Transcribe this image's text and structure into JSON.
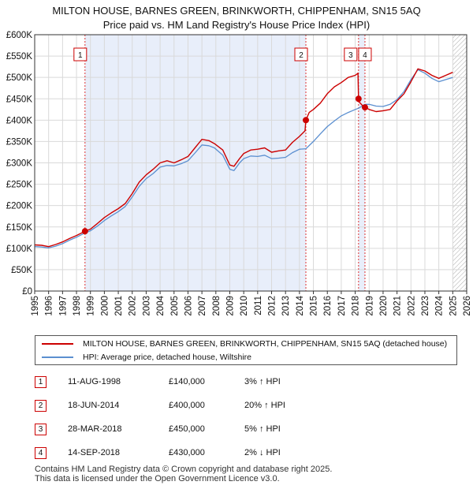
{
  "title_line1": "MILTON HOUSE, BARNES GREEN, BRINKWORTH, CHIPPENHAM, SN15 5AQ",
  "title_line2": "Price paid vs. HM Land Registry's House Price Index (HPI)",
  "chart_data": {
    "type": "line",
    "title": "MILTON HOUSE, BARNES GREEN, BRINKWORTH, CHIPPENHAM, SN15 5AQ — Price paid vs. HM Land Registry's House Price Index (HPI)",
    "xlim": [
      1995,
      2026
    ],
    "ylim": [
      0,
      600000
    ],
    "x_ticks": [
      1995,
      1996,
      1997,
      1998,
      1999,
      2000,
      2001,
      2002,
      2003,
      2004,
      2005,
      2006,
      2007,
      2008,
      2009,
      2010,
      2011,
      2012,
      2013,
      2014,
      2015,
      2016,
      2017,
      2018,
      2019,
      2020,
      2021,
      2022,
      2023,
      2024,
      2025,
      2026
    ],
    "y_ticks": [
      {
        "value": 0,
        "label": "£0"
      },
      {
        "value": 50000,
        "label": "£50K"
      },
      {
        "value": 100000,
        "label": "£100K"
      },
      {
        "value": 150000,
        "label": "£150K"
      },
      {
        "value": 200000,
        "label": "£200K"
      },
      {
        "value": 250000,
        "label": "£250K"
      },
      {
        "value": 300000,
        "label": "£300K"
      },
      {
        "value": 350000,
        "label": "£350K"
      },
      {
        "value": 400000,
        "label": "£400K"
      },
      {
        "value": 450000,
        "label": "£450K"
      },
      {
        "value": 500000,
        "label": "£500K"
      },
      {
        "value": 550000,
        "label": "£550K"
      },
      {
        "value": 600000,
        "label": "£600K"
      }
    ],
    "shaded_ranges": [
      [
        1998.61,
        2014.46
      ],
      [
        2018.24,
        2018.7
      ]
    ],
    "hatched_from": 2025.0,
    "series": [
      {
        "name": "MILTON HOUSE, BARNES GREEN, BRINKWORTH, CHIPPENHAM, SN15 5AQ (detached house)",
        "color": "#cc0000",
        "x": [
          1995.0,
          1995.5,
          1996.0,
          1996.5,
          1997.0,
          1997.5,
          1998.0,
          1998.61,
          1999.0,
          1999.5,
          2000.0,
          2000.5,
          2001.0,
          2001.5,
          2002.0,
          2002.5,
          2003.0,
          2003.5,
          2004.0,
          2004.5,
          2005.0,
          2005.5,
          2006.0,
          2006.5,
          2007.0,
          2007.5,
          2007.9,
          2008.5,
          2009.0,
          2009.3,
          2009.7,
          2010.0,
          2010.5,
          2011.0,
          2011.5,
          2012.0,
          2012.5,
          2013.0,
          2013.5,
          2014.0,
          2014.4,
          2014.46,
          2014.7,
          2015.0,
          2015.5,
          2016.0,
          2016.5,
          2017.0,
          2017.5,
          2018.0,
          2018.2,
          2018.24,
          2018.3,
          2018.5,
          2018.7,
          2019.0,
          2019.5,
          2020.0,
          2020.5,
          2021.0,
          2021.5,
          2022.0,
          2022.5,
          2023.0,
          2023.5,
          2024.0,
          2024.5,
          2025.0
        ],
        "y": [
          108000,
          107000,
          104000,
          109000,
          115000,
          123000,
          130000,
          140000,
          145000,
          158000,
          172000,
          183000,
          193000,
          205000,
          228000,
          255000,
          272000,
          285000,
          300000,
          305000,
          300000,
          307000,
          315000,
          335000,
          355000,
          352000,
          345000,
          330000,
          295000,
          292000,
          310000,
          322000,
          330000,
          332000,
          335000,
          325000,
          328000,
          330000,
          348000,
          362000,
          375000,
          400000,
          418000,
          425000,
          440000,
          462000,
          478000,
          488000,
          500000,
          505000,
          510000,
          450000,
          442000,
          435000,
          430000,
          425000,
          420000,
          422000,
          425000,
          445000,
          462000,
          490000,
          520000,
          515000,
          505000,
          498000,
          505000,
          512000
        ]
      },
      {
        "name": "HPI: Average price, detached house, Wiltshire",
        "color": "#5b8fd0",
        "x": [
          1995.0,
          1995.5,
          1996.0,
          1996.5,
          1997.0,
          1997.5,
          1998.0,
          1998.61,
          1999.0,
          1999.5,
          2000.0,
          2000.5,
          2001.0,
          2001.5,
          2002.0,
          2002.5,
          2003.0,
          2003.5,
          2004.0,
          2004.5,
          2005.0,
          2005.5,
          2006.0,
          2006.5,
          2007.0,
          2007.5,
          2007.9,
          2008.5,
          2009.0,
          2009.3,
          2009.7,
          2010.0,
          2010.5,
          2011.0,
          2011.5,
          2012.0,
          2012.5,
          2013.0,
          2013.5,
          2014.0,
          2014.46,
          2015.0,
          2015.5,
          2016.0,
          2016.5,
          2017.0,
          2017.5,
          2018.0,
          2018.24,
          2018.7,
          2019.0,
          2019.5,
          2020.0,
          2020.5,
          2021.0,
          2021.5,
          2022.0,
          2022.5,
          2023.0,
          2023.5,
          2024.0,
          2024.5,
          2025.0
        ],
        "y": [
          104000,
          103000,
          101000,
          105000,
          111000,
          119000,
          126000,
          136000,
          141000,
          152000,
          165000,
          176000,
          186000,
          198000,
          220000,
          245000,
          263000,
          275000,
          290000,
          294000,
          293000,
          298000,
          305000,
          323000,
          342000,
          340000,
          335000,
          318000,
          285000,
          282000,
          300000,
          310000,
          316000,
          315000,
          318000,
          310000,
          311000,
          313000,
          324000,
          332000,
          333000,
          350000,
          368000,
          385000,
          398000,
          410000,
          418000,
          425000,
          428000,
          437000,
          437000,
          433000,
          432000,
          437000,
          448000,
          467000,
          495000,
          518000,
          510000,
          498000,
          490000,
          495000,
          500000
        ]
      }
    ],
    "transactions": [
      {
        "label": "1",
        "date": "11-AUG-1998",
        "price_text": "£140,000",
        "hpi_text": "3% ↑ HPI",
        "x": 1998.61,
        "y": 140000
      },
      {
        "label": "2",
        "date": "18-JUN-2014",
        "price_text": "£400,000",
        "hpi_text": "20% ↑ HPI",
        "x": 2014.46,
        "y": 400000
      },
      {
        "label": "3",
        "date": "28-MAR-2018",
        "price_text": "£450,000",
        "hpi_text": "5% ↑ HPI",
        "x": 2018.24,
        "y": 450000
      },
      {
        "label": "4",
        "date": "14-SEP-2018",
        "price_text": "£430,000",
        "hpi_text": "2% ↓ HPI",
        "x": 2018.7,
        "y": 430000
      }
    ]
  },
  "legend": {
    "property_label": "MILTON HOUSE, BARNES GREEN, BRINKWORTH, CHIPPENHAM, SN15 5AQ (detached house)",
    "property_color": "#cc0000",
    "hpi_label": "HPI: Average price, detached house, Wiltshire",
    "hpi_color": "#5b8fd0"
  },
  "footer_line1": "Contains HM Land Registry data © Crown copyright and database right 2025.",
  "footer_line2": "This data is licensed under the Open Government Licence v3.0."
}
